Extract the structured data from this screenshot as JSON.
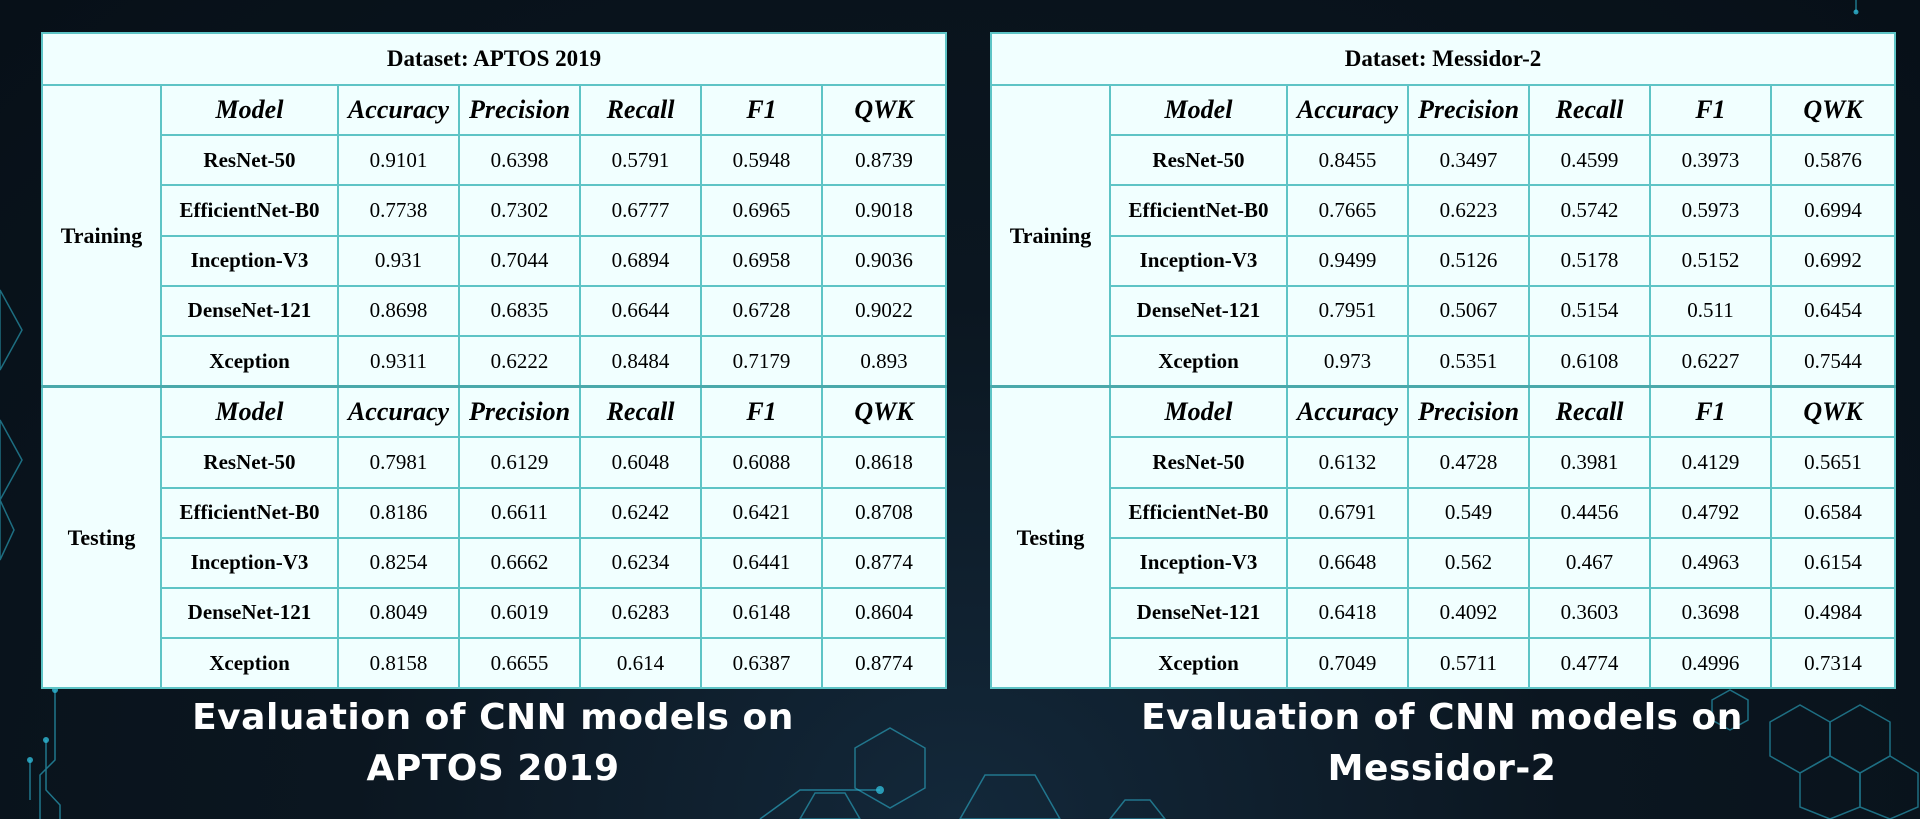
{
  "panels": [
    {
      "dataset_title": "Dataset: APTOS 2019",
      "sections": [
        {
          "phase": "Training",
          "header": [
            "Model",
            "Accuracy",
            "Precision",
            "Recall",
            "F1",
            "QWK"
          ],
          "rows": [
            [
              "ResNet-50",
              "0.9101",
              "0.6398",
              "0.5791",
              "0.5948",
              "0.8739"
            ],
            [
              "EfficientNet-B0",
              "0.7738",
              "0.7302",
              "0.6777",
              "0.6965",
              "0.9018"
            ],
            [
              "Inception-V3",
              "0.931",
              "0.7044",
              "0.6894",
              "0.6958",
              "0.9036"
            ],
            [
              "DenseNet-121",
              "0.8698",
              "0.6835",
              "0.6644",
              "0.6728",
              "0.9022"
            ],
            [
              "Xception",
              "0.9311",
              "0.6222",
              "0.8484",
              "0.7179",
              "0.893"
            ]
          ]
        },
        {
          "phase": "Testing",
          "header": [
            "Model",
            "Accuracy",
            "Precision",
            "Recall",
            "F1",
            "QWK"
          ],
          "rows": [
            [
              "ResNet-50",
              "0.7981",
              "0.6129",
              "0.6048",
              "0.6088",
              "0.8618"
            ],
            [
              "EfficientNet-B0",
              "0.8186",
              "0.6611",
              "0.6242",
              "0.6421",
              "0.8708"
            ],
            [
              "Inception-V3",
              "0.8254",
              "0.6662",
              "0.6234",
              "0.6441",
              "0.8774"
            ],
            [
              "DenseNet-121",
              "0.8049",
              "0.6019",
              "0.6283",
              "0.6148",
              "0.8604"
            ],
            [
              "Xception",
              "0.8158",
              "0.6655",
              "0.614",
              "0.6387",
              "0.8774"
            ]
          ]
        }
      ],
      "caption": [
        "Evaluation of CNN models on",
        "APTOS 2019"
      ]
    },
    {
      "dataset_title": "Dataset: Messidor-2",
      "sections": [
        {
          "phase": "Training",
          "header": [
            "Model",
            "Accuracy",
            "Precision",
            "Recall",
            "F1",
            "QWK"
          ],
          "rows": [
            [
              "ResNet-50",
              "0.8455",
              "0.3497",
              "0.4599",
              "0.3973",
              "0.5876"
            ],
            [
              "EfficientNet-B0",
              "0.7665",
              "0.6223",
              "0.5742",
              "0.5973",
              "0.6994"
            ],
            [
              "Inception-V3",
              "0.9499",
              "0.5126",
              "0.5178",
              "0.5152",
              "0.6992"
            ],
            [
              "DenseNet-121",
              "0.7951",
              "0.5067",
              "0.5154",
              "0.511",
              "0.6454"
            ],
            [
              "Xception",
              "0.973",
              "0.5351",
              "0.6108",
              "0.6227",
              "0.7544"
            ]
          ]
        },
        {
          "phase": "Testing",
          "header": [
            "Model",
            "Accuracy",
            "Precision",
            "Recall",
            "F1",
            "QWK"
          ],
          "rows": [
            [
              "ResNet-50",
              "0.6132",
              "0.4728",
              "0.3981",
              "0.4129",
              "0.5651"
            ],
            [
              "EfficientNet-B0",
              "0.6791",
              "0.549",
              "0.4456",
              "0.4792",
              "0.6584"
            ],
            [
              "Inception-V3",
              "0.6648",
              "0.562",
              "0.467",
              "0.4963",
              "0.6154"
            ],
            [
              "DenseNet-121",
              "0.6418",
              "0.4092",
              "0.3603",
              "0.3698",
              "0.4984"
            ],
            [
              "Xception",
              "0.7049",
              "0.5711",
              "0.4774",
              "0.4996",
              "0.7314"
            ]
          ]
        }
      ],
      "caption": [
        "Evaluation of CNN models on",
        "Messidor-2"
      ]
    }
  ],
  "colors": {
    "background": "#0b1620",
    "table_fill": "#f1ffff",
    "table_border": "#5ec4c6",
    "caption_text": "#ffffff",
    "decoration": "#2fb9d6"
  }
}
